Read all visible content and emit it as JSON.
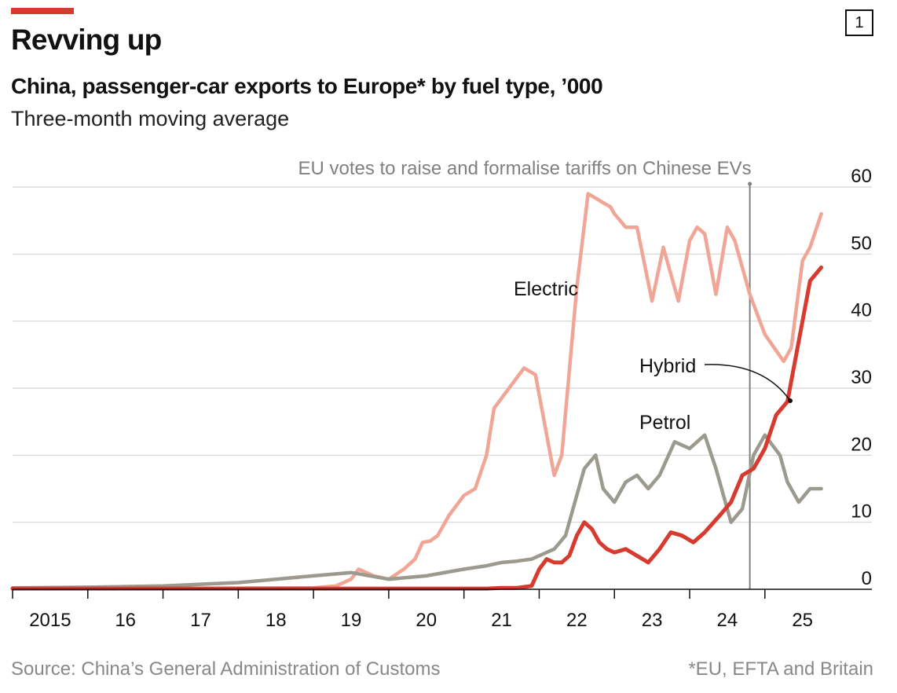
{
  "header": {
    "title": "Revving up",
    "figure_number": "1",
    "subtitle": "China, passenger-car exports to Europe* by fuel type, ’000",
    "subtitle2": "Three-month moving average"
  },
  "footer": {
    "source": "Source: China’s General Administration of Customs",
    "footnote": "*EU, EFTA and Britain"
  },
  "colors": {
    "electric": "#f0a596",
    "hybrid": "#d73a2e",
    "petrol": "#9c9a8e",
    "accent": "#d73a2e",
    "grid": "#d4d4d4",
    "annotation": "#808080"
  },
  "chart_data": {
    "type": "line",
    "title": "China, passenger-car exports to Europe* by fuel type, ’000",
    "subtitle": "Three-month moving average",
    "x_tick_labels": [
      "2015",
      "16",
      "17",
      "18",
      "19",
      "20",
      "21",
      "22",
      "23",
      "24",
      "25"
    ],
    "y_ticks": [
      0,
      10,
      20,
      30,
      40,
      50,
      60
    ],
    "ylim": [
      0,
      60
    ],
    "xlim": [
      2015.0,
      2025.9
    ],
    "grid": true,
    "y_axis_side": "right",
    "annotation": {
      "x": 2024.8,
      "label": "EU votes to raise and formalise tariffs on Chinese EVs"
    },
    "series": [
      {
        "name": "Electric",
        "x": [
          2015.0,
          2017.0,
          2019.0,
          2019.3,
          2019.5,
          2019.6,
          2019.8,
          2020.0,
          2020.2,
          2020.35,
          2020.45,
          2020.55,
          2020.65,
          2020.8,
          2021.0,
          2021.15,
          2021.3,
          2021.4,
          2021.6,
          2021.8,
          2021.95,
          2022.2,
          2022.3,
          2022.5,
          2022.65,
          2022.8,
          2022.95,
          2023.0,
          2023.15,
          2023.3,
          2023.5,
          2023.65,
          2023.85,
          2024.0,
          2024.1,
          2024.2,
          2024.35,
          2024.5,
          2024.6,
          2024.8,
          2025.0,
          2025.25,
          2025.35,
          2025.5,
          2025.6,
          2025.75
        ],
        "values": [
          0.1,
          0.1,
          0.2,
          0.5,
          1.5,
          3,
          2,
          1.5,
          3,
          4.5,
          7,
          7.2,
          8,
          11,
          14,
          15,
          20,
          27,
          30,
          33,
          32,
          17,
          20,
          45,
          59,
          58,
          57,
          56,
          54,
          54,
          43,
          51,
          43,
          52,
          54,
          53,
          44,
          54,
          52,
          44,
          38,
          34,
          36,
          49,
          51,
          56
        ]
      },
      {
        "name": "Hybrid",
        "x": [
          2015.0,
          2020.0,
          2021.0,
          2021.3,
          2021.5,
          2021.7,
          2021.9,
          2022.0,
          2022.1,
          2022.2,
          2022.3,
          2022.4,
          2022.5,
          2022.6,
          2022.7,
          2022.8,
          2022.9,
          2023.0,
          2023.15,
          2023.3,
          2023.45,
          2023.6,
          2023.75,
          2023.9,
          2024.05,
          2024.2,
          2024.4,
          2024.55,
          2024.7,
          2024.85,
          2025.0,
          2025.15,
          2025.3,
          2025.45,
          2025.6,
          2025.75
        ],
        "values": [
          0.1,
          0.1,
          0.1,
          0.1,
          0.2,
          0.2,
          0.5,
          3,
          4.5,
          4,
          4,
          5,
          8,
          10,
          9,
          7,
          6,
          5.5,
          6,
          5,
          4,
          6,
          8.5,
          8,
          7,
          8.5,
          11,
          13,
          17,
          18,
          21,
          26,
          28,
          37,
          46,
          48
        ]
      },
      {
        "name": "Petrol",
        "x": [
          2015.0,
          2016.0,
          2017.0,
          2018.0,
          2018.5,
          2019.0,
          2019.5,
          2020.0,
          2020.5,
          2021.0,
          2021.3,
          2021.5,
          2021.7,
          2021.9,
          2022.0,
          2022.1,
          2022.2,
          2022.35,
          2022.5,
          2022.6,
          2022.75,
          2022.85,
          2023.0,
          2023.15,
          2023.3,
          2023.45,
          2023.6,
          2023.8,
          2024.0,
          2024.2,
          2024.35,
          2024.55,
          2024.7,
          2024.85,
          2025.0,
          2025.2,
          2025.3,
          2025.45,
          2025.6,
          2025.75
        ],
        "values": [
          0.2,
          0.3,
          0.5,
          1,
          1.5,
          2,
          2.5,
          1.5,
          2,
          3,
          3.5,
          4,
          4.2,
          4.5,
          5,
          5.5,
          6,
          8,
          14,
          18,
          20,
          15,
          13,
          16,
          17,
          15,
          17,
          22,
          21,
          23,
          18,
          10,
          12,
          20,
          23,
          20,
          16,
          13,
          15,
          15
        ]
      }
    ]
  }
}
